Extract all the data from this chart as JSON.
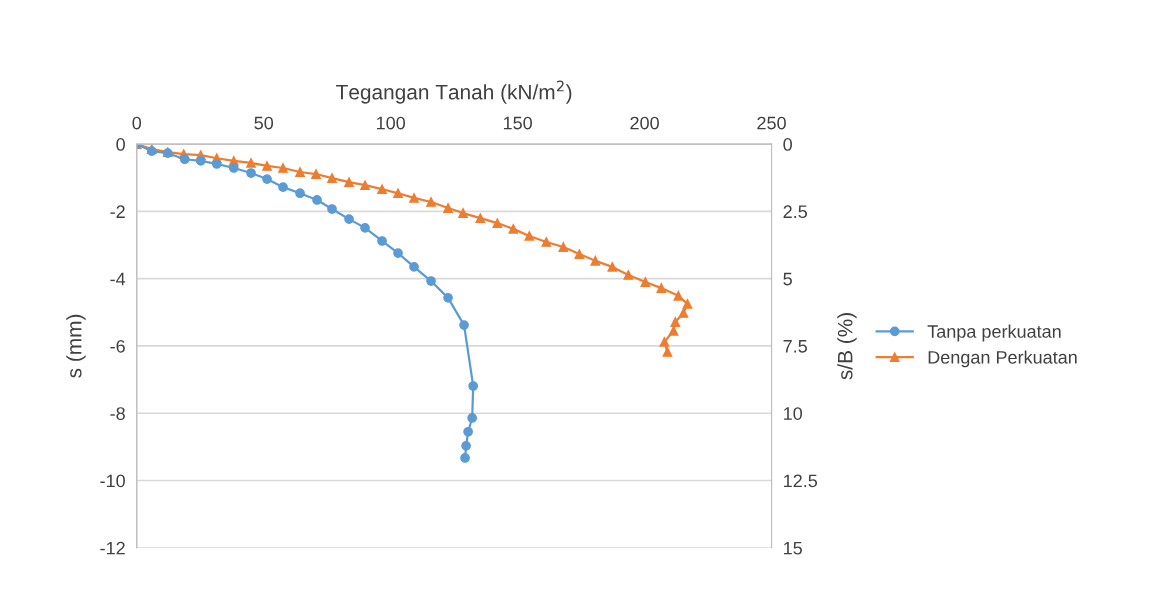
{
  "chart_data": {
    "type": "line",
    "xlabel": "Tegangan Tanah (kN/m$^{2}$)",
    "ylabel": "s (mm)",
    "y2label": "s/B (%)",
    "xlim": [
      0,
      250
    ],
    "xticks": [
      0,
      50,
      100,
      150,
      200,
      250
    ],
    "ylim": [
      -12,
      0
    ],
    "yticks": [
      -12,
      -10,
      -8,
      -6,
      -4,
      -2,
      0
    ],
    "y2lim": [
      15,
      0
    ],
    "y2ticks": [
      0,
      2.5,
      5,
      7.5,
      10,
      12.5,
      15
    ],
    "grid": "y",
    "legend": "right",
    "series": [
      {
        "name": "Tanpa perkuatan",
        "color": "#5b9bd5",
        "marker": "circle",
        "x": [
          0,
          5.9,
          12.2,
          18.9,
          25.2,
          31.5,
          38.2,
          45.0,
          51.3,
          57.6,
          64.3,
          71.0,
          76.9,
          83.6,
          89.9,
          96.6,
          102.9,
          109.2,
          115.9,
          122.6,
          128.9,
          132.5,
          132.1,
          130.5,
          129.7,
          129.3
        ],
        "values": [
          0,
          -0.21,
          -0.27,
          -0.45,
          -0.5,
          -0.59,
          -0.71,
          -0.86,
          -1.04,
          -1.28,
          -1.46,
          -1.66,
          -1.93,
          -2.23,
          -2.49,
          -2.88,
          -3.24,
          -3.65,
          -4.07,
          -4.57,
          -5.38,
          -7.19,
          -8.14,
          -8.55,
          -8.97,
          -9.33
        ]
      },
      {
        "name": "Dengan Perkuatan",
        "color": "#ed7d31",
        "marker": "triangle",
        "x": [
          0,
          5.9,
          12.2,
          18.5,
          25.2,
          31.5,
          38.2,
          45.0,
          51.3,
          57.6,
          64.3,
          70.6,
          76.9,
          83.6,
          89.9,
          96.6,
          102.9,
          109.2,
          115.9,
          122.6,
          128.5,
          135.3,
          142.0,
          148.3,
          154.6,
          161.3,
          168.0,
          174.3,
          180.6,
          187.3,
          193.6,
          200.3,
          206.6,
          213.3,
          216.9,
          215.3,
          212.1,
          211.4,
          207.8,
          209.0
        ],
        "values": [
          0,
          -0.15,
          -0.24,
          -0.3,
          -0.33,
          -0.42,
          -0.5,
          -0.56,
          -0.65,
          -0.71,
          -0.83,
          -0.89,
          -1.01,
          -1.13,
          -1.22,
          -1.34,
          -1.46,
          -1.6,
          -1.72,
          -1.9,
          -2.05,
          -2.2,
          -2.35,
          -2.52,
          -2.73,
          -2.91,
          -3.06,
          -3.27,
          -3.47,
          -3.65,
          -3.89,
          -4.1,
          -4.28,
          -4.51,
          -4.75,
          -5.02,
          -5.29,
          -5.55,
          -5.88,
          -6.18
        ]
      }
    ]
  }
}
